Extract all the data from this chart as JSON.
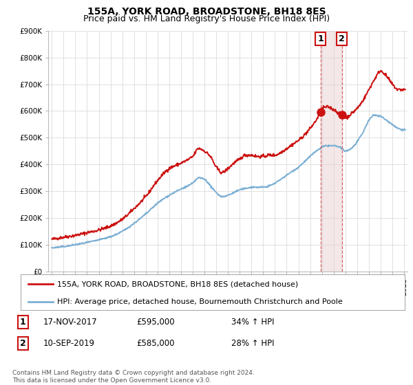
{
  "title": "155A, YORK ROAD, BROADSTONE, BH18 8ES",
  "subtitle": "Price paid vs. HM Land Registry's House Price Index (HPI)",
  "ylim": [
    0,
    900000
  ],
  "yticks": [
    0,
    100000,
    200000,
    300000,
    400000,
    500000,
    600000,
    700000,
    800000,
    900000
  ],
  "ytick_labels": [
    "£0",
    "£100K",
    "£200K",
    "£300K",
    "£400K",
    "£500K",
    "£600K",
    "£700K",
    "£800K",
    "£900K"
  ],
  "background_color": "#ffffff",
  "plot_bg_color": "#ffffff",
  "grid_color": "#e0e0e0",
  "hpi_line_color": "#7bafd4",
  "price_line_color": "#cc1111",
  "sale1_date_num": 2017.88,
  "sale1_price": 595000,
  "sale2_date_num": 2019.69,
  "sale2_price": 585000,
  "sale1_date_str": "17-NOV-2017",
  "sale1_pct": "34% ↑ HPI",
  "sale2_date_str": "10-SEP-2019",
  "sale2_pct": "28% ↑ HPI",
  "legend_line1": "155A, YORK ROAD, BROADSTONE, BH18 8ES (detached house)",
  "legend_line2": "HPI: Average price, detached house, Bournemouth Christchurch and Poole",
  "footnote": "Contains HM Land Registry data © Crown copyright and database right 2024.\nThis data is licensed under the Open Government Licence v3.0.",
  "title_fontsize": 10,
  "subtitle_fontsize": 9,
  "tick_fontsize": 7.5,
  "legend_fontsize": 8,
  "footnote_fontsize": 6.5,
  "xlim_left": 1994.7,
  "xlim_right": 2025.3
}
